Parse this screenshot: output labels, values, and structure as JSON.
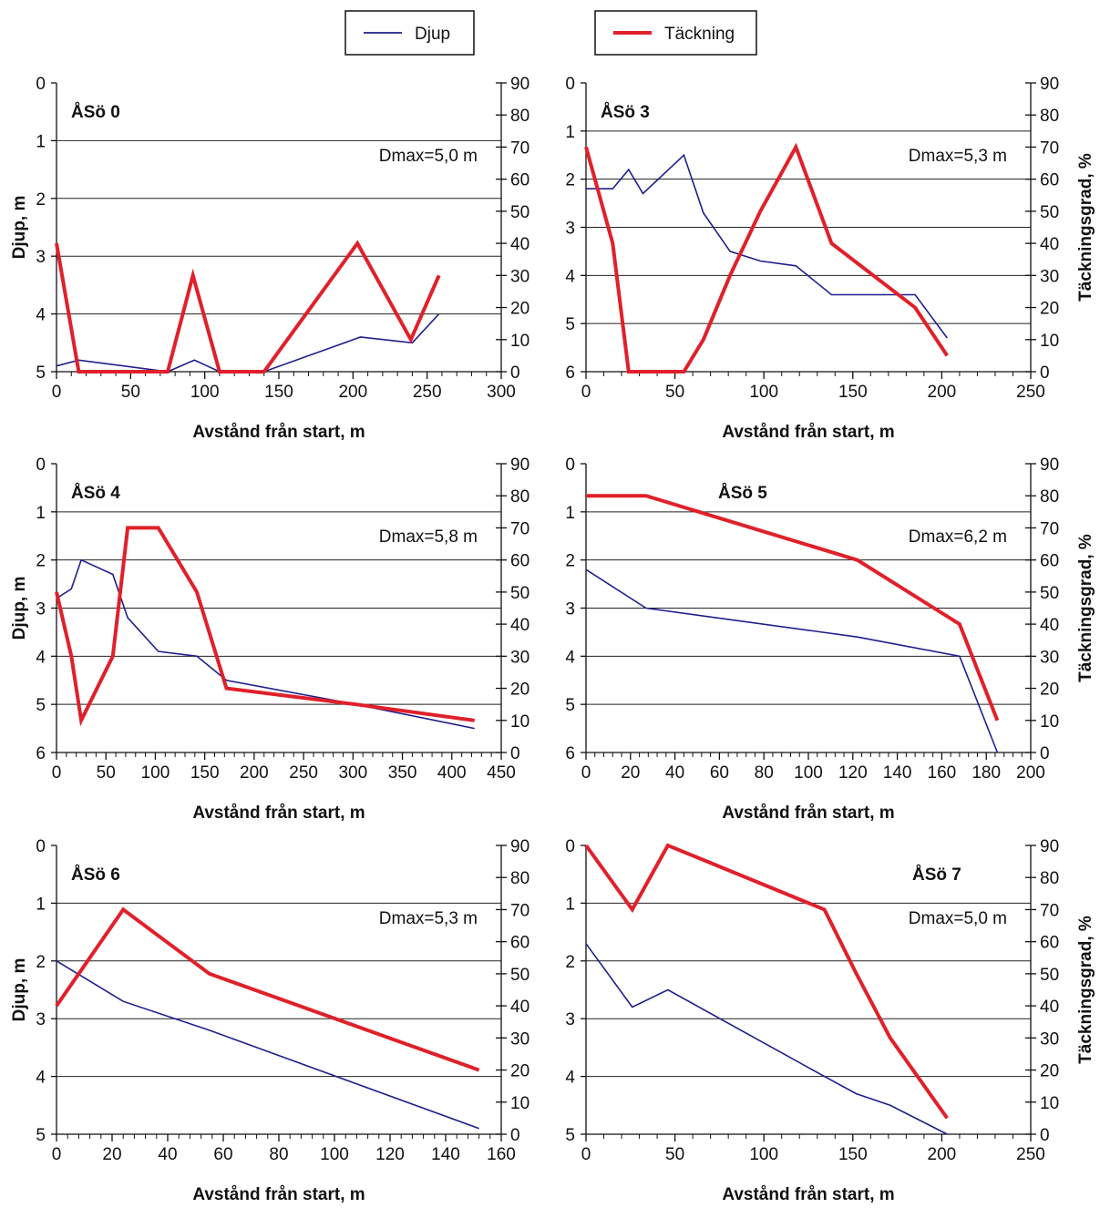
{
  "legend": {
    "items": [
      {
        "label": "Djup",
        "color": "#1f1f8c"
      },
      {
        "label": "Täckning",
        "color": "#e0202a"
      }
    ]
  },
  "chart_data": [
    {
      "type": "line",
      "title": "ÅSö 0",
      "annotation": "Dmax=5,0 m",
      "xlabel": "Avstånd från start, m",
      "ylabel": "Djup, m",
      "y2label": "",
      "xlim": [
        0,
        300
      ],
      "xticks": [
        0,
        50,
        100,
        150,
        200,
        250,
        300
      ],
      "ylim": [
        0,
        5
      ],
      "yticks": [
        0,
        1,
        2,
        3,
        4,
        5
      ],
      "y2lim": [
        0,
        90
      ],
      "y2ticks": [
        0,
        10,
        20,
        30,
        40,
        50,
        60,
        70,
        80,
        90
      ],
      "series": [
        {
          "name": "Djup",
          "axis": "left",
          "x": [
            0,
            15,
            75,
            93,
            110,
            140,
            205,
            240,
            258
          ],
          "y": [
            4.9,
            4.8,
            5.0,
            4.8,
            5.0,
            5.0,
            4.4,
            4.5,
            4.0
          ]
        },
        {
          "name": "Täckning",
          "axis": "right",
          "x": [
            0,
            15,
            75,
            92,
            110,
            140,
            203,
            239,
            258
          ],
          "y": [
            40,
            0,
            0,
            30,
            0,
            0,
            40,
            10,
            30
          ]
        }
      ]
    },
    {
      "type": "line",
      "title": "ÅSö 3",
      "annotation": "Dmax=5,3 m",
      "xlabel": "Avstånd från start, m",
      "ylabel": "",
      "y2label": "Täckningsgrad, %",
      "xlim": [
        0,
        250
      ],
      "xticks": [
        0,
        50,
        100,
        150,
        200,
        250
      ],
      "ylim": [
        0,
        6
      ],
      "yticks": [
        0,
        1,
        2,
        3,
        4,
        5,
        6
      ],
      "y2lim": [
        0,
        90
      ],
      "y2ticks": [
        0,
        10,
        20,
        30,
        40,
        50,
        60,
        70,
        80,
        90
      ],
      "series": [
        {
          "name": "Djup",
          "axis": "left",
          "x": [
            0,
            15,
            24,
            32,
            55,
            66,
            81,
            98,
            118,
            138,
            185,
            203
          ],
          "y": [
            2.2,
            2.2,
            1.8,
            2.3,
            1.5,
            2.7,
            3.5,
            3.7,
            3.8,
            4.4,
            4.4,
            5.3
          ]
        },
        {
          "name": "Täckning",
          "axis": "right",
          "x": [
            0,
            15,
            24,
            55,
            66,
            81,
            98,
            118,
            138,
            185,
            203
          ],
          "y": [
            70,
            40,
            0,
            0,
            10,
            30,
            50,
            70,
            40,
            20,
            5
          ]
        }
      ]
    },
    {
      "type": "line",
      "title": "ÅSö 4",
      "annotation": "Dmax=5,8 m",
      "xlabel": "Avstånd från start, m",
      "ylabel": "Djup, m",
      "y2label": "",
      "xlim": [
        0,
        450
      ],
      "xticks": [
        0,
        50,
        100,
        150,
        200,
        250,
        300,
        350,
        400,
        450
      ],
      "ylim": [
        0,
        6
      ],
      "yticks": [
        0,
        1,
        2,
        3,
        4,
        5,
        6
      ],
      "y2lim": [
        0,
        90
      ],
      "y2ticks": [
        0,
        10,
        20,
        30,
        40,
        50,
        60,
        70,
        80,
        90
      ],
      "series": [
        {
          "name": "Djup",
          "axis": "left",
          "x": [
            0,
            15,
            25,
            57,
            72,
            103,
            142,
            172,
            303,
            423
          ],
          "y": [
            2.8,
            2.6,
            2.0,
            2.3,
            3.2,
            3.9,
            4.0,
            4.5,
            5.0,
            5.5
          ]
        },
        {
          "name": "Täckning",
          "axis": "right",
          "x": [
            0,
            15,
            25,
            57,
            72,
            103,
            142,
            172,
            303,
            423
          ],
          "y": [
            50,
            30,
            10,
            30,
            70,
            70,
            50,
            20,
            15,
            10
          ]
        }
      ]
    },
    {
      "type": "line",
      "title": "ÅSö 5",
      "annotation": "Dmax=6,2 m",
      "xlabel": "Avstånd från start, m",
      "ylabel": "",
      "y2label": "Täckningsgrad, %",
      "xlim": [
        0,
        200
      ],
      "xticks": [
        0,
        20,
        40,
        60,
        80,
        100,
        120,
        140,
        160,
        180,
        200
      ],
      "ylim": [
        0,
        6
      ],
      "yticks": [
        0,
        1,
        2,
        3,
        4,
        5,
        6
      ],
      "y2lim": [
        0,
        90
      ],
      "y2ticks": [
        0,
        10,
        20,
        30,
        40,
        50,
        60,
        70,
        80,
        90
      ],
      "series": [
        {
          "name": "Djup",
          "axis": "left",
          "x": [
            0,
            27,
            122,
            168,
            185
          ],
          "y": [
            2.2,
            3.0,
            3.6,
            4.0,
            6.0
          ]
        },
        {
          "name": "Täckning",
          "axis": "right",
          "x": [
            0,
            27,
            122,
            168,
            185
          ],
          "y": [
            80,
            80,
            60,
            40,
            10
          ]
        }
      ]
    },
    {
      "type": "line",
      "title": "ÅSö 6",
      "annotation": "Dmax=5,3 m",
      "xlabel": "Avstånd från start, m",
      "ylabel": "Djup, m",
      "y2label": "",
      "xlim": [
        0,
        160
      ],
      "xticks": [
        0,
        20,
        40,
        60,
        80,
        100,
        120,
        140,
        160
      ],
      "ylim": [
        0,
        5
      ],
      "yticks": [
        0,
        1,
        2,
        3,
        4,
        5
      ],
      "y2lim": [
        0,
        90
      ],
      "y2ticks": [
        0,
        10,
        20,
        30,
        40,
        50,
        60,
        70,
        80,
        90
      ],
      "series": [
        {
          "name": "Djup",
          "axis": "left",
          "x": [
            0,
            24,
            55,
            152
          ],
          "y": [
            2.0,
            2.7,
            3.2,
            4.9
          ]
        },
        {
          "name": "Täckning",
          "axis": "right",
          "x": [
            0,
            24,
            55,
            152
          ],
          "y": [
            40,
            70,
            50,
            20
          ]
        }
      ]
    },
    {
      "type": "line",
      "title": "ÅSö 7",
      "annotation": "Dmax=5,0 m",
      "xlabel": "Avstånd från start, m",
      "ylabel": "",
      "y2label": "Täckningsgrad, %",
      "xlim": [
        0,
        250
      ],
      "xticks": [
        0,
        50,
        100,
        150,
        200,
        250
      ],
      "ylim": [
        0,
        5
      ],
      "yticks": [
        0,
        1,
        2,
        3,
        4,
        5
      ],
      "y2lim": [
        0,
        90
      ],
      "y2ticks": [
        0,
        10,
        20,
        30,
        40,
        50,
        60,
        70,
        80,
        90
      ],
      "series": [
        {
          "name": "Djup",
          "axis": "left",
          "x": [
            0,
            26,
            46,
            134,
            152,
            171,
            203
          ],
          "y": [
            1.7,
            2.8,
            2.5,
            4.0,
            4.3,
            4.5,
            5.0
          ]
        },
        {
          "name": "Täckning",
          "axis": "right",
          "x": [
            0,
            26,
            46,
            134,
            152,
            171,
            203
          ],
          "y": [
            90,
            70,
            90,
            70,
            50,
            30,
            5
          ]
        }
      ]
    }
  ]
}
